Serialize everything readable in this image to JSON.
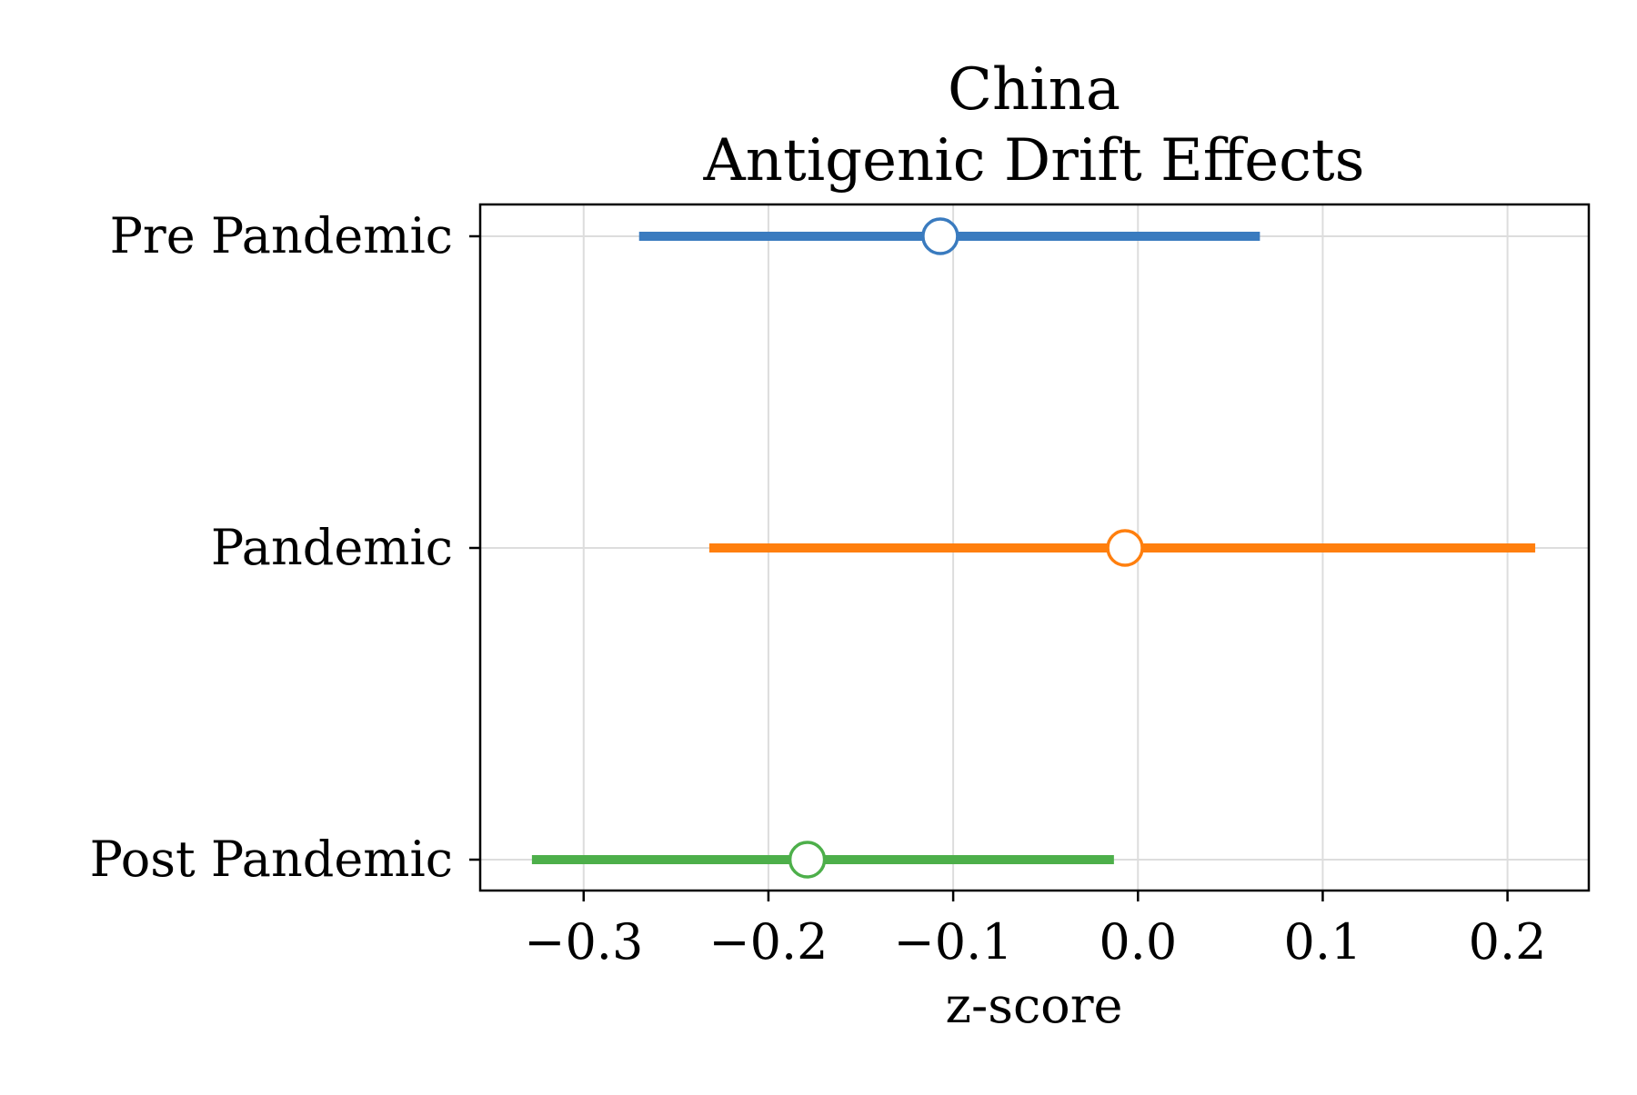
{
  "chart_data": {
    "type": "forest",
    "title_line1": "China",
    "title_line2": "Antigenic Drift Effects",
    "xlabel": "z-score",
    "ylabel": "",
    "xlim": [
      -0.356,
      0.244
    ],
    "xticks": [
      -0.3,
      -0.2,
      -0.1,
      0.0,
      0.1,
      0.2
    ],
    "xtick_labels": [
      "−0.3",
      "−0.2",
      "−0.1",
      "0.0",
      "0.1",
      "0.2"
    ],
    "grid": true,
    "categories": [
      "Pre Pandemic",
      "Pandemic",
      "Post Pandemic"
    ],
    "series": [
      {
        "category": "Pre Pandemic",
        "estimate": -0.107,
        "ci_low": -0.27,
        "ci_high": 0.066,
        "color": "#3a7bbf"
      },
      {
        "category": "Pandemic",
        "estimate": -0.007,
        "ci_low": -0.232,
        "ci_high": 0.215,
        "color": "#ff7f0e"
      },
      {
        "category": "Post Pandemic",
        "estimate": -0.179,
        "ci_low": -0.328,
        "ci_high": -0.013,
        "color": "#4daf4a"
      }
    ]
  }
}
